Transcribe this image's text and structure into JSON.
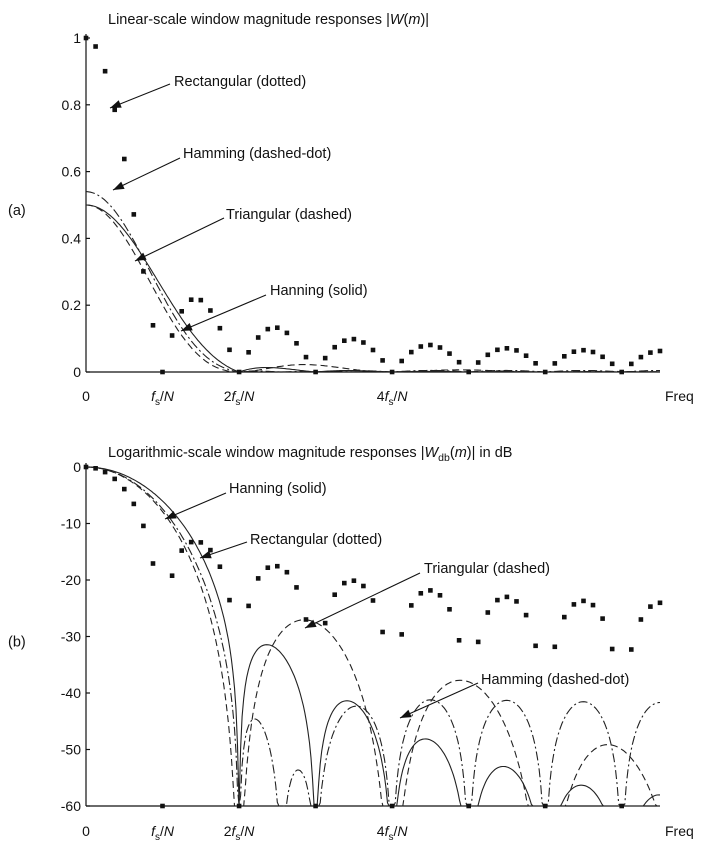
{
  "chart_data": [
    {
      "type": "line",
      "panel_label": "(a)",
      "title": "Linear-scale window magnitude responses |W(m)|",
      "title_parts": [
        "Linear-scale window magnitude responses |",
        "W",
        "(",
        "m",
        ")|"
      ],
      "xlabel": "Freq",
      "ylim": [
        0,
        1
      ],
      "yticks": [
        "1",
        "0.8",
        "0.6",
        "0.4",
        "0.2",
        "0"
      ],
      "ytick_values": [
        1,
        0.8,
        0.6,
        0.4,
        0.2,
        0
      ],
      "xticks": [
        {
          "value": 0,
          "label": "0"
        },
        {
          "value": 1,
          "label": "fs/N",
          "coef": "",
          "sub": "s"
        },
        {
          "value": 2,
          "label": "2fs/N",
          "coef": "2",
          "sub": "s"
        },
        {
          "value": 4,
          "label": "4fs/N",
          "coef": "4",
          "sub": "s"
        }
      ],
      "xlim": [
        0,
        7.5
      ],
      "series": [
        {
          "name": "Rectangular (dotted)",
          "style": "dotted",
          "label_parts": [
            "Rectangular (dotted)"
          ]
        },
        {
          "name": "Hamming (dashed-dot)",
          "style": "dashdot",
          "label_parts": [
            "Hamming (dashed-dot)"
          ]
        },
        {
          "name": "Triangular (dashed)",
          "style": "dashed",
          "label_parts": [
            "Triangular (dashed)"
          ]
        },
        {
          "name": "Hanning (solid)",
          "style": "solid",
          "label_parts": [
            "Hanning (solid)"
          ]
        }
      ]
    },
    {
      "type": "line",
      "panel_label": "(b)",
      "title": "Logarithmic-scale window magnitude responses |Wdb(m)| in dB",
      "title_parts": [
        "Logarithmic-scale window magnitude responses |",
        "W",
        "db",
        "(",
        "m",
        ")| in dB"
      ],
      "xlabel": "Freq",
      "ylim": [
        -60,
        0
      ],
      "yticks": [
        "0",
        "-10",
        "-20",
        "-30",
        "-40",
        "-50",
        "-60"
      ],
      "ytick_values": [
        0,
        -10,
        -20,
        -30,
        -40,
        -50,
        -60
      ],
      "xticks": [
        {
          "value": 0,
          "label": "0"
        },
        {
          "value": 1,
          "label": "fs/N",
          "coef": "",
          "sub": "s"
        },
        {
          "value": 2,
          "label": "2fs/N",
          "coef": "2",
          "sub": "s"
        },
        {
          "value": 4,
          "label": "4fs/N",
          "coef": "4",
          "sub": "s"
        }
      ],
      "xlim": [
        0,
        7.5
      ],
      "series": [
        {
          "name": "Hanning (solid)",
          "style": "solid",
          "label_parts": [
            "Hanning (solid)"
          ]
        },
        {
          "name": "Rectangular (dotted)",
          "style": "dotted",
          "label_parts": [
            "Rectangular (dotted)"
          ]
        },
        {
          "name": "Triangular (dashed)",
          "style": "dashed",
          "label_parts": [
            "Triangular (dashed)"
          ]
        },
        {
          "name": "Hamming (dashed-dot)",
          "style": "dashdot",
          "label_parts": [
            "Hamming (dashed-dot)"
          ]
        }
      ]
    }
  ]
}
